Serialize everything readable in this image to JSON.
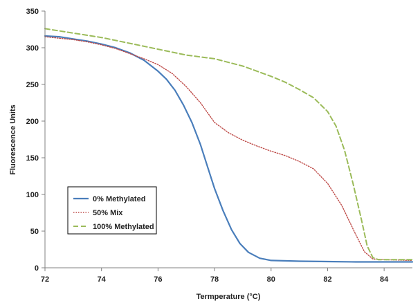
{
  "chart_data": {
    "type": "line",
    "title": "",
    "xlabel": "Termperature (°C)",
    "ylabel": "Fluorescence Units",
    "xlim": [
      72,
      85
    ],
    "ylim": [
      0,
      350
    ],
    "x_ticks": [
      72,
      74,
      76,
      78,
      80,
      82,
      84
    ],
    "y_ticks": [
      0,
      50,
      100,
      150,
      200,
      250,
      300,
      350
    ],
    "grid": false,
    "legend_position": "bottom-left",
    "series": [
      {
        "name": "0% Methylated",
        "color": "#4a7ebb",
        "style": "solid",
        "points": [
          [
            72,
            316
          ],
          [
            72.5,
            315
          ],
          [
            73,
            312
          ],
          [
            73.5,
            309
          ],
          [
            74,
            305
          ],
          [
            74.5,
            300
          ],
          [
            75,
            293
          ],
          [
            75.5,
            283
          ],
          [
            76,
            268
          ],
          [
            76.3,
            257
          ],
          [
            76.6,
            242
          ],
          [
            76.9,
            222
          ],
          [
            77.2,
            198
          ],
          [
            77.5,
            168
          ],
          [
            77.8,
            132
          ],
          [
            78,
            108
          ],
          [
            78.3,
            78
          ],
          [
            78.6,
            52
          ],
          [
            78.9,
            33
          ],
          [
            79.2,
            21
          ],
          [
            79.6,
            13
          ],
          [
            80,
            10
          ],
          [
            81,
            9
          ],
          [
            82,
            8.5
          ],
          [
            83,
            8
          ],
          [
            84,
            8
          ],
          [
            85,
            8
          ]
        ]
      },
      {
        "name": "50% Mix",
        "color": "#be4b48",
        "style": "dotted",
        "points": [
          [
            72,
            315
          ],
          [
            72.5,
            313
          ],
          [
            73,
            311
          ],
          [
            73.5,
            308
          ],
          [
            74,
            304
          ],
          [
            74.5,
            299
          ],
          [
            75,
            292
          ],
          [
            75.5,
            285
          ],
          [
            76,
            277
          ],
          [
            76.5,
            265
          ],
          [
            77,
            247
          ],
          [
            77.5,
            225
          ],
          [
            78,
            198
          ],
          [
            78.5,
            184
          ],
          [
            79,
            174
          ],
          [
            79.5,
            166
          ],
          [
            80,
            159
          ],
          [
            80.5,
            153
          ],
          [
            81,
            145
          ],
          [
            81.5,
            135
          ],
          [
            82,
            115
          ],
          [
            82.5,
            85
          ],
          [
            83,
            45
          ],
          [
            83.3,
            22
          ],
          [
            83.6,
            12
          ],
          [
            84,
            11
          ],
          [
            85,
            10
          ]
        ]
      },
      {
        "name": "100% Methylated",
        "color": "#9bbb59",
        "style": "dashed",
        "points": [
          [
            72,
            326
          ],
          [
            73,
            320
          ],
          [
            74,
            314
          ],
          [
            75,
            306
          ],
          [
            76,
            298
          ],
          [
            77,
            290
          ],
          [
            78,
            285
          ],
          [
            79,
            275
          ],
          [
            80,
            261
          ],
          [
            80.5,
            253
          ],
          [
            81,
            243
          ],
          [
            81.5,
            232
          ],
          [
            82,
            213
          ],
          [
            82.3,
            193
          ],
          [
            82.6,
            160
          ],
          [
            82.9,
            115
          ],
          [
            83.2,
            65
          ],
          [
            83.4,
            30
          ],
          [
            83.6,
            14
          ],
          [
            83.8,
            11
          ],
          [
            84,
            11
          ],
          [
            85,
            11
          ]
        ]
      }
    ]
  }
}
